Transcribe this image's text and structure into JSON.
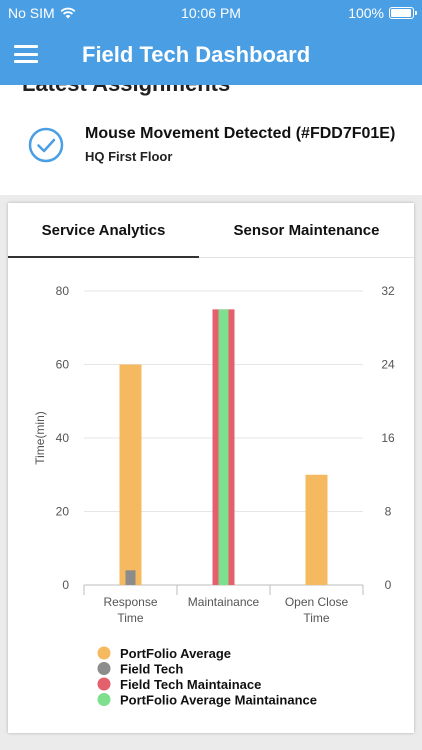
{
  "status_bar": {
    "carrier": "No SIM",
    "time": "10:06 PM",
    "battery": "100%",
    "battery_level": 1.0
  },
  "header": {
    "title": "Field Tech Dashboard"
  },
  "assignments": {
    "heading": "Latest Assignments",
    "item": {
      "title": "Mouse Movement Detected (#FDD7F01E)",
      "subtitle": "HQ First Floor",
      "status": "completed"
    }
  },
  "tabs": [
    {
      "label": "Service Analytics",
      "active": true
    },
    {
      "label": "Sensor Maintenance",
      "active": false
    }
  ],
  "colors": {
    "header_bg": "#4a9fe4",
    "portfolio_average": "#f5b95f",
    "field_tech": "#8c8c8c",
    "field_tech_maintainace": "#e4606c",
    "portfolio_average_maintainance": "#7ee08f",
    "check": "#4a9fe4"
  },
  "chart_data": {
    "type": "bar",
    "categories": [
      [
        "Response",
        "Time"
      ],
      [
        "Maintainance"
      ],
      [
        "Open Close",
        "Time"
      ]
    ],
    "ylabel": "Time(min)",
    "ylim": [
      0,
      80
    ],
    "y_ticks": [
      0,
      20,
      40,
      60,
      80
    ],
    "y2lim": [
      0,
      32
    ],
    "y2_ticks": [
      0,
      8,
      16,
      24,
      32
    ],
    "grid": true,
    "legend_position": "bottom",
    "series": [
      {
        "name": "PortFolio Average",
        "values": [
          60,
          null,
          30
        ],
        "color_key": "portfolio_average"
      },
      {
        "name": "Field Tech",
        "values": [
          4,
          null,
          0
        ],
        "color_key": "field_tech"
      },
      {
        "name": "Field Tech Maintainace",
        "values": [
          null,
          75,
          null
        ],
        "color_key": "field_tech_maintainace"
      },
      {
        "name": "PortFolio Average Maintainance",
        "values": [
          null,
          75,
          null
        ],
        "color_key": "portfolio_average_maintainance"
      }
    ]
  }
}
